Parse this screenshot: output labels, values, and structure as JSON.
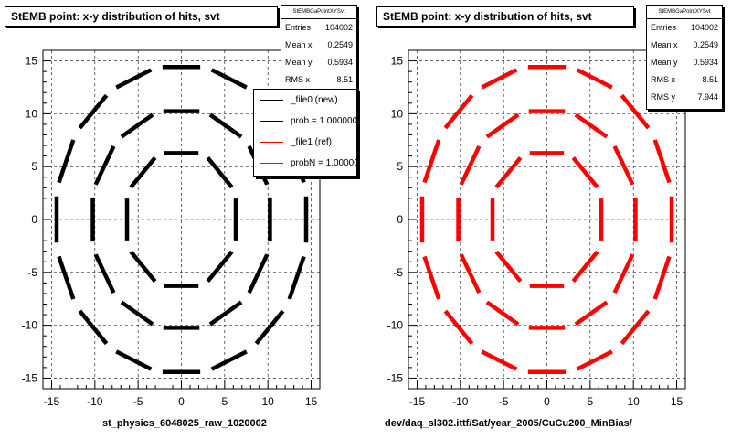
{
  "panels": [
    {
      "title": "StEMB point: x-y distribution of hits, svt",
      "stats_header": "StEMBGaPointXYSvt",
      "stats": [
        {
          "label": "Entries",
          "value": "104002"
        },
        {
          "label": "Mean x",
          "value": "0.2549"
        },
        {
          "label": "Mean y",
          "value": "0.5934"
        },
        {
          "label": "RMS x",
          "value": "8.51"
        }
      ],
      "legend": [
        "_file0 (new)",
        "prob = 1.000000",
        "_file1 (ref)",
        "probN = 1.000000"
      ],
      "xcaption": "st_physics_6048025_raw_1020002"
    },
    {
      "title": "StEMB point: x-y distribution of hits, svt",
      "stats_header": "StEMBGaPointXYSvt",
      "stats": [
        {
          "label": "Entries",
          "value": "104002"
        },
        {
          "label": "Mean x",
          "value": "0.2549"
        },
        {
          "label": "Mean y",
          "value": "0.5934"
        },
        {
          "label": "RMS x",
          "value": "8.51"
        },
        {
          "label": "RMS y",
          "value": "7.944"
        }
      ],
      "xcaption": "dev/daq_sl302.ittf/Sat/year_2005/CuCu200_MinBias/"
    }
  ],
  "footer": "... ...  ......  ....",
  "colors": {
    "new": "#000000",
    "ref": "#ff0000",
    "frame": "#000000",
    "grid": "#000000"
  },
  "chart_data": [
    {
      "type": "scatter",
      "title": "StEMB point: x-y distribution of hits, svt",
      "xlim": [
        -16,
        16
      ],
      "ylim": [
        -16,
        16
      ],
      "xticks": [
        -15,
        -10,
        -5,
        0,
        5,
        10,
        15
      ],
      "yticks": [
        -15,
        -10,
        -5,
        0,
        5,
        10,
        15
      ],
      "grid": true,
      "legend_position": "top-right",
      "series": [
        {
          "name": "_file0 (new)",
          "color": "#000000",
          "layers": [
            {
              "radius": 6.8,
              "sides": 8,
              "segments": 8
            },
            {
              "radius": 10.6,
              "sides": 12,
              "segments": 12
            },
            {
              "radius": 14.7,
              "sides": 16,
              "segments": 16
            }
          ]
        }
      ]
    },
    {
      "type": "scatter",
      "title": "StEMB point: x-y distribution of hits, svt",
      "xlim": [
        -16,
        16
      ],
      "ylim": [
        -16,
        16
      ],
      "xticks": [
        -15,
        -10,
        -5,
        0,
        5,
        10,
        15
      ],
      "yticks": [
        -15,
        -10,
        -5,
        0,
        5,
        10,
        15
      ],
      "grid": true,
      "series": [
        {
          "name": "_file1 (ref)",
          "color": "#ff0000",
          "layers": [
            {
              "radius": 6.8,
              "sides": 8,
              "segments": 8
            },
            {
              "radius": 10.6,
              "sides": 12,
              "segments": 12
            },
            {
              "radius": 14.7,
              "sides": 16,
              "segments": 16
            }
          ]
        }
      ]
    }
  ]
}
